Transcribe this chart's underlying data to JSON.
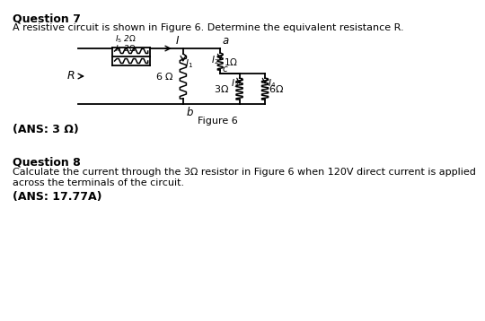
{
  "title_q7": "Question 7",
  "body_q7": "A resistive circuit is shown in Figure 6. Determine the equivalent resistance R.",
  "ans_q7": "(ANS: 3 Ω)",
  "title_q8": "Question 8",
  "body_q8": "Calculate the current through the 3Ω resistor in Figure 6 when 120V direct current is applied\nacross the terminals of the circuit.",
  "ans_q8": "(ANS: 17.77A)",
  "fig_label": "Figure 6",
  "bg_color": "#ffffff",
  "text_color": "#000000",
  "font_size_title": 9,
  "font_size_body": 8.5,
  "font_size_ans": 9
}
